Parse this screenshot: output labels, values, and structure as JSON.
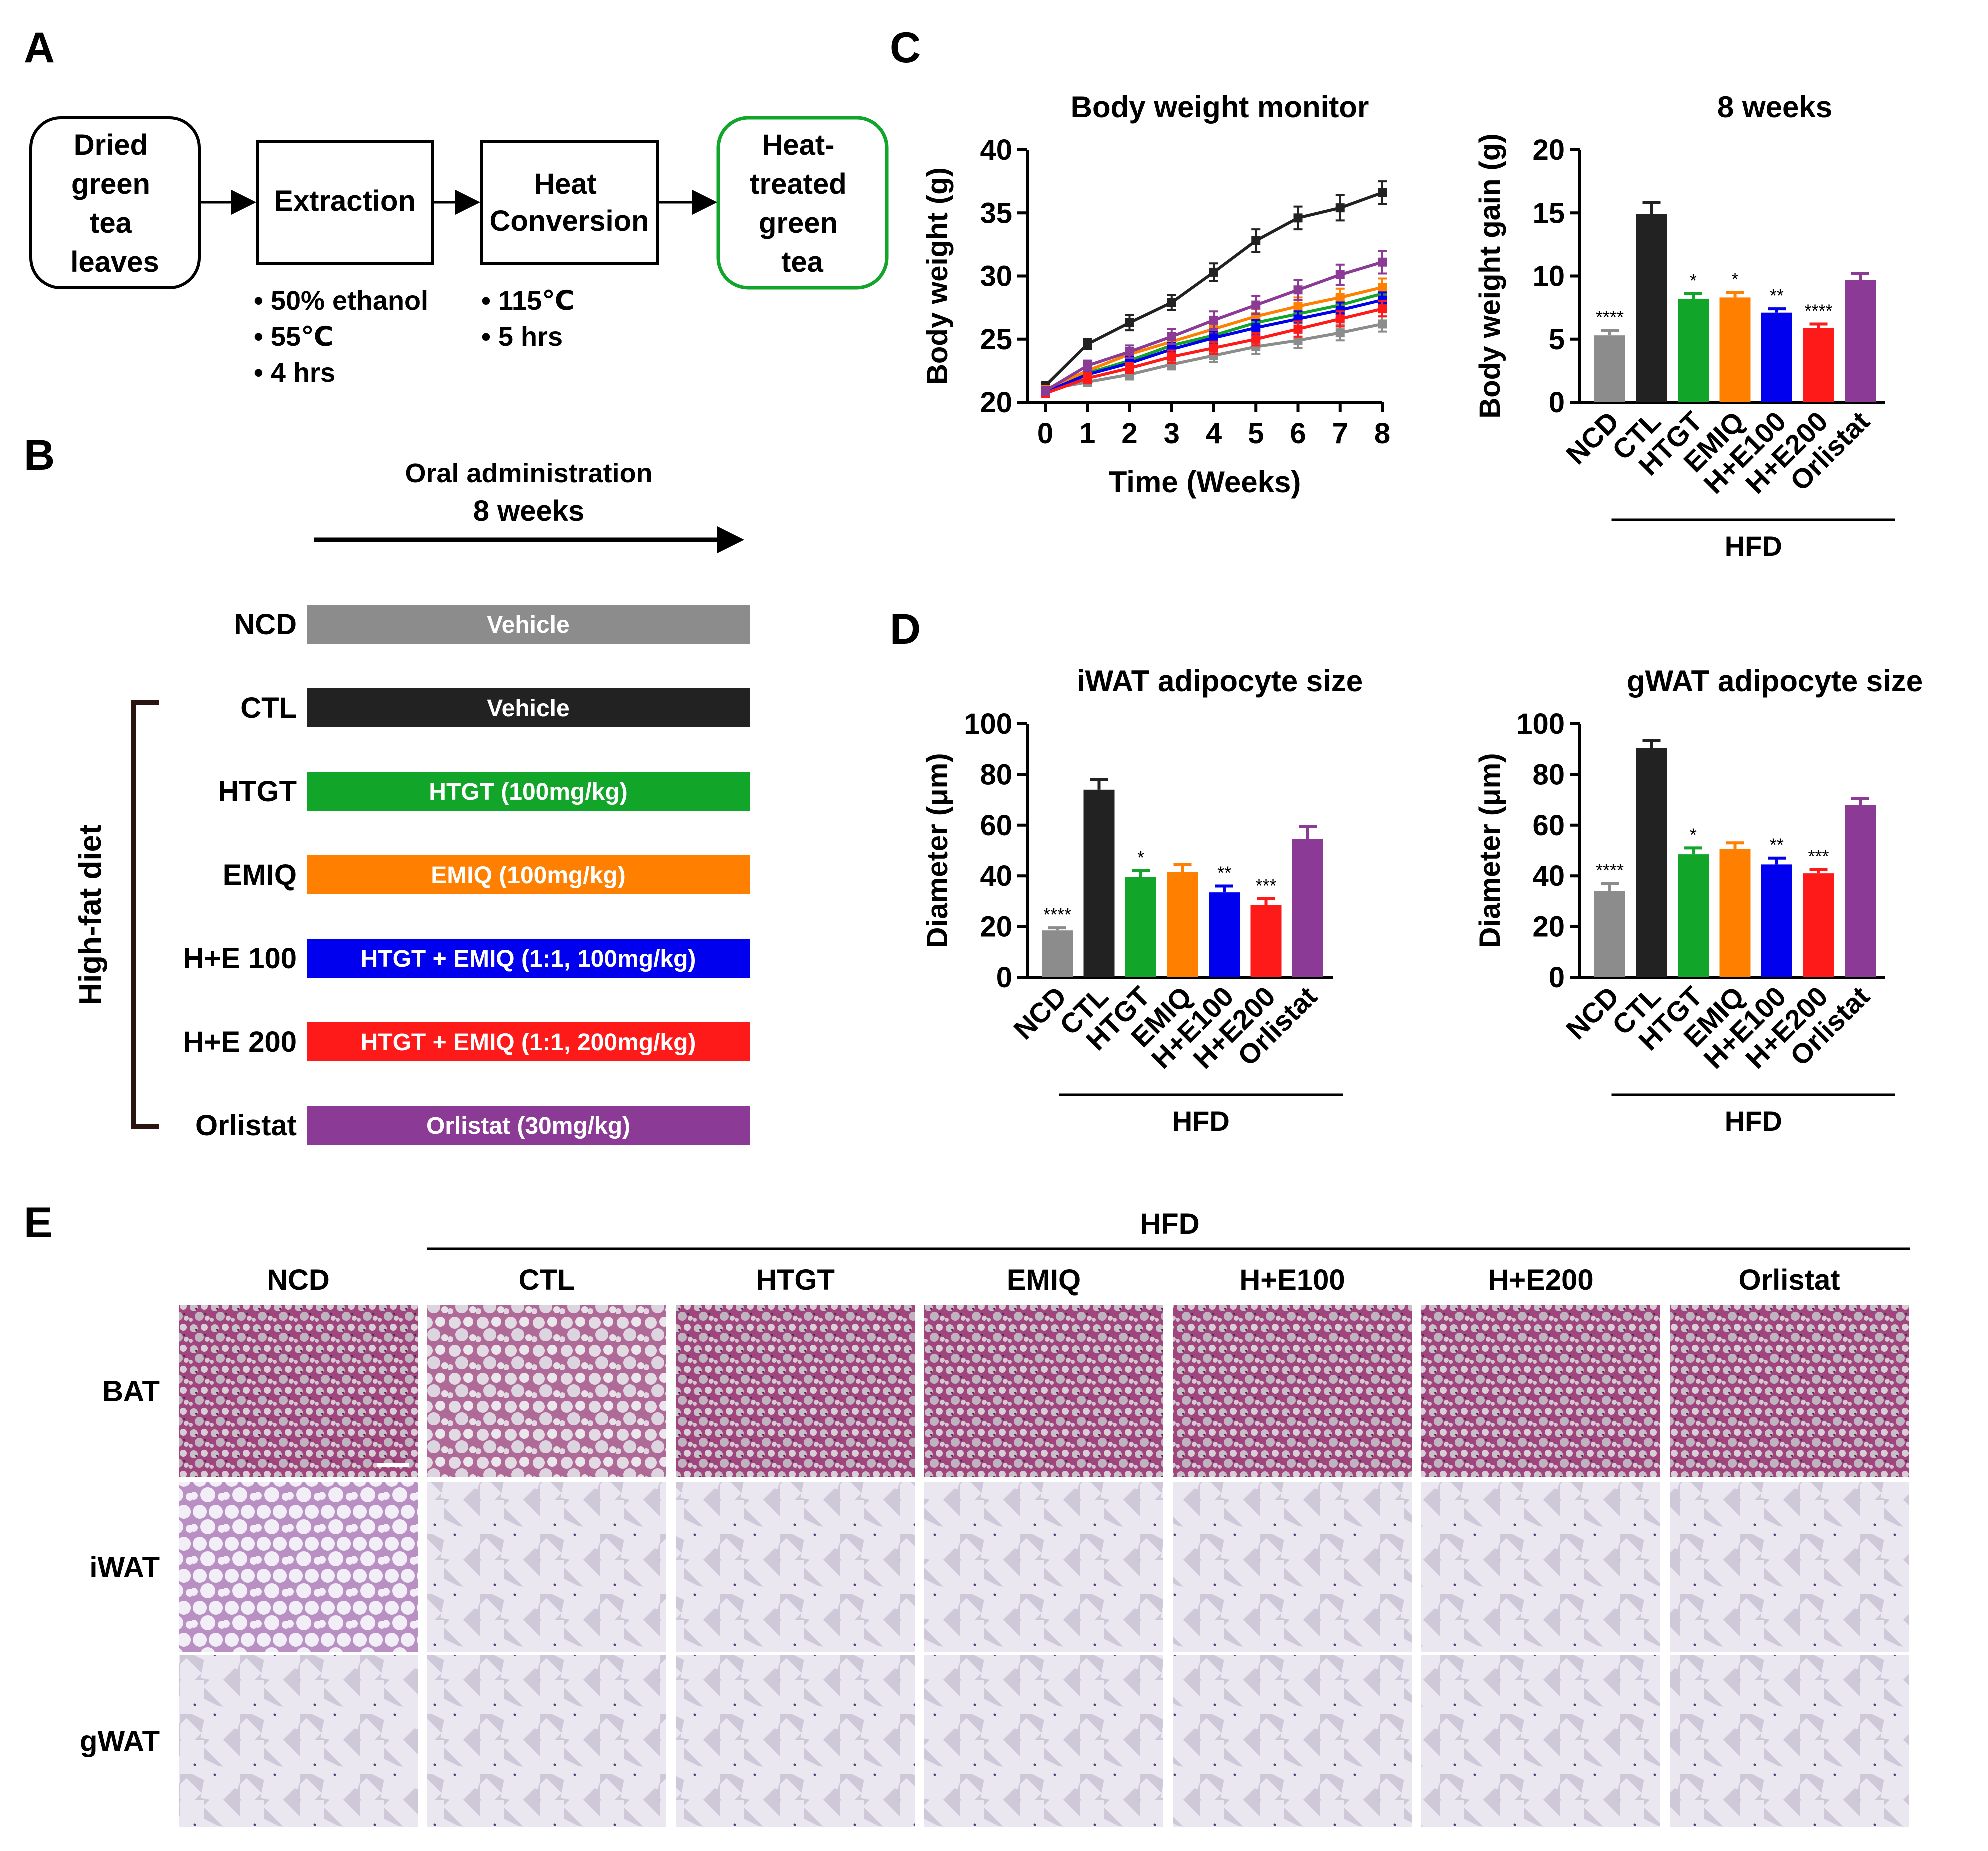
{
  "colors": {
    "NCD": "#8c8c8c",
    "CTL": "#222222",
    "HTGT": "#11a52a",
    "EMIQ": "#ff8000",
    "H+E100": "#0000ee",
    "H+E200": "#ff1a1a",
    "Orlistat": "#8b3a96",
    "green_box": "#11a52a"
  },
  "panel_A": {
    "label": "A",
    "box1": [
      "Dried",
      "green",
      "tea",
      "leaves"
    ],
    "box2": [
      "Extraction"
    ],
    "box3": [
      "Heat",
      "Conversion"
    ],
    "box4": [
      "Heat-",
      "treated",
      "green",
      "tea"
    ],
    "notes2": [
      "• 50% ethanol",
      "• 55℃",
      "• 4 hrs"
    ],
    "notes3": [
      "• 115℃",
      "• 5 hrs"
    ]
  },
  "panel_B": {
    "label": "B",
    "arrow_title": "Oral administration",
    "arrow_subtitle": "8 weeks",
    "bracket_label": "High-fat diet",
    "groups": [
      {
        "name": "NCD",
        "bar_text": "Vehicle",
        "color_key": "NCD"
      },
      {
        "name": "CTL",
        "bar_text": "Vehicle",
        "color_key": "CTL"
      },
      {
        "name": "HTGT",
        "bar_text": "HTGT (100mg/kg)",
        "color_key": "HTGT"
      },
      {
        "name": "EMIQ",
        "bar_text": "EMIQ (100mg/kg)",
        "color_key": "EMIQ"
      },
      {
        "name": "H+E 100",
        "bar_text": "HTGT + EMIQ (1:1, 100mg/kg)",
        "color_key": "H+E100"
      },
      {
        "name": "H+E 200",
        "bar_text": "HTGT + EMIQ (1:1, 200mg/kg)",
        "color_key": "H+E200"
      },
      {
        "name": "Orlistat",
        "bar_text": "Orlistat (30mg/kg)",
        "color_key": "Orlistat"
      }
    ]
  },
  "panel_C_label": "C",
  "panel_D_label": "D",
  "panel_E": {
    "label": "E",
    "hfd_label": "HFD",
    "columns": [
      "NCD",
      "CTL",
      "HTGT",
      "EMIQ",
      "H+E100",
      "H+E200",
      "Orlistat"
    ],
    "rows": [
      "BAT",
      "iWAT",
      "gWAT"
    ]
  },
  "chart_data": [
    {
      "id": "body_weight_monitor",
      "type": "line",
      "title": "Body weight monitor",
      "xlabel": "Time (Weeks)",
      "ylabel": "Body weight (g)",
      "x": [
        0,
        1,
        2,
        3,
        4,
        5,
        6,
        7,
        8
      ],
      "xlim": [
        0,
        8
      ],
      "ylim": [
        20,
        40
      ],
      "yticks": [
        20,
        25,
        30,
        35,
        40
      ],
      "series": [
        {
          "name": "NCD",
          "values": [
            21.0,
            21.6,
            22.2,
            23.0,
            23.7,
            24.4,
            24.9,
            25.5,
            26.2
          ],
          "err": [
            0.3,
            0.3,
            0.4,
            0.4,
            0.5,
            0.6,
            0.6,
            0.6,
            0.6
          ]
        },
        {
          "name": "CTL",
          "values": [
            21.3,
            24.6,
            26.3,
            27.9,
            30.3,
            32.8,
            34.6,
            35.4,
            36.6
          ],
          "err": [
            0.3,
            0.4,
            0.6,
            0.6,
            0.7,
            0.9,
            0.9,
            1.0,
            0.9
          ]
        },
        {
          "name": "HTGT",
          "values": [
            20.9,
            22.3,
            23.3,
            24.5,
            25.3,
            26.3,
            27.0,
            27.7,
            28.6
          ],
          "err": [
            0.3,
            0.4,
            0.5,
            0.5,
            0.6,
            0.6,
            0.7,
            0.7,
            0.7
          ]
        },
        {
          "name": "EMIQ",
          "values": [
            21.0,
            22.5,
            23.8,
            24.8,
            25.8,
            26.8,
            27.6,
            28.3,
            29.1
          ],
          "err": [
            0.3,
            0.4,
            0.5,
            0.5,
            0.6,
            0.6,
            0.7,
            0.7,
            0.7
          ]
        },
        {
          "name": "H+E100",
          "values": [
            20.8,
            22.2,
            23.1,
            24.2,
            25.1,
            25.9,
            26.6,
            27.3,
            28.1
          ],
          "err": [
            0.3,
            0.4,
            0.5,
            0.5,
            0.5,
            0.6,
            0.6,
            0.6,
            0.6
          ]
        },
        {
          "name": "H+E200",
          "values": [
            20.7,
            21.9,
            22.7,
            23.6,
            24.3,
            25.0,
            25.8,
            26.6,
            27.4
          ],
          "err": [
            0.3,
            0.4,
            0.4,
            0.5,
            0.5,
            0.5,
            0.6,
            0.6,
            0.6
          ]
        },
        {
          "name": "Orlistat",
          "values": [
            20.9,
            22.9,
            24.0,
            25.2,
            26.5,
            27.7,
            28.9,
            30.1,
            31.1
          ],
          "err": [
            0.3,
            0.4,
            0.5,
            0.6,
            0.7,
            0.7,
            0.8,
            0.8,
            0.9
          ]
        }
      ]
    },
    {
      "id": "bw_gain_8_weeks",
      "type": "bar",
      "title": "8 weeks",
      "ylabel": "Body weight gain (g)",
      "group_label": "HFD",
      "categories": [
        "NCD",
        "CTL",
        "HTGT",
        "EMIQ",
        "H+E100",
        "H+E200",
        "Orlistat"
      ],
      "values": [
        5.3,
        14.9,
        8.2,
        8.3,
        7.1,
        5.9,
        9.7
      ],
      "err": [
        0.4,
        0.9,
        0.4,
        0.4,
        0.3,
        0.3,
        0.5
      ],
      "significance": [
        "****",
        "",
        "*",
        "*",
        "**",
        "****",
        ""
      ],
      "ylim": [
        0,
        20
      ],
      "yticks": [
        0,
        5,
        10,
        15,
        20
      ]
    },
    {
      "id": "iwat_adipocyte_size",
      "type": "bar",
      "title": "iWAT adipocyte size",
      "ylabel": "Diameter (μm)",
      "group_label": "HFD",
      "categories": [
        "NCD",
        "CTL",
        "HTGT",
        "EMIQ",
        "H+E100",
        "H+E200",
        "Orlistat"
      ],
      "values": [
        18.5,
        74,
        39.5,
        41.5,
        33.5,
        28.5,
        54.5
      ],
      "err": [
        1,
        4,
        2.5,
        3,
        2.5,
        2.5,
        5
      ],
      "significance": [
        "****",
        "",
        "*",
        "",
        "**",
        "***",
        ""
      ],
      "ylim": [
        0,
        100
      ],
      "yticks": [
        0,
        20,
        40,
        60,
        80,
        100
      ]
    },
    {
      "id": "gwat_adipocyte_size",
      "type": "bar",
      "title": "gWAT adipocyte size",
      "ylabel": "Diameter (μm)",
      "group_label": "HFD",
      "categories": [
        "NCD",
        "CTL",
        "HTGT",
        "EMIQ",
        "H+E100",
        "H+E200",
        "Orlistat"
      ],
      "values": [
        34,
        90.5,
        48.5,
        50.5,
        44.5,
        41,
        68
      ],
      "err": [
        3,
        3,
        2.5,
        2.5,
        2.5,
        1.5,
        2.5
      ],
      "significance": [
        "****",
        "",
        "*",
        "",
        "**",
        "***",
        ""
      ],
      "ylim": [
        0,
        100
      ],
      "yticks": [
        0,
        20,
        40,
        60,
        80,
        100
      ]
    }
  ]
}
